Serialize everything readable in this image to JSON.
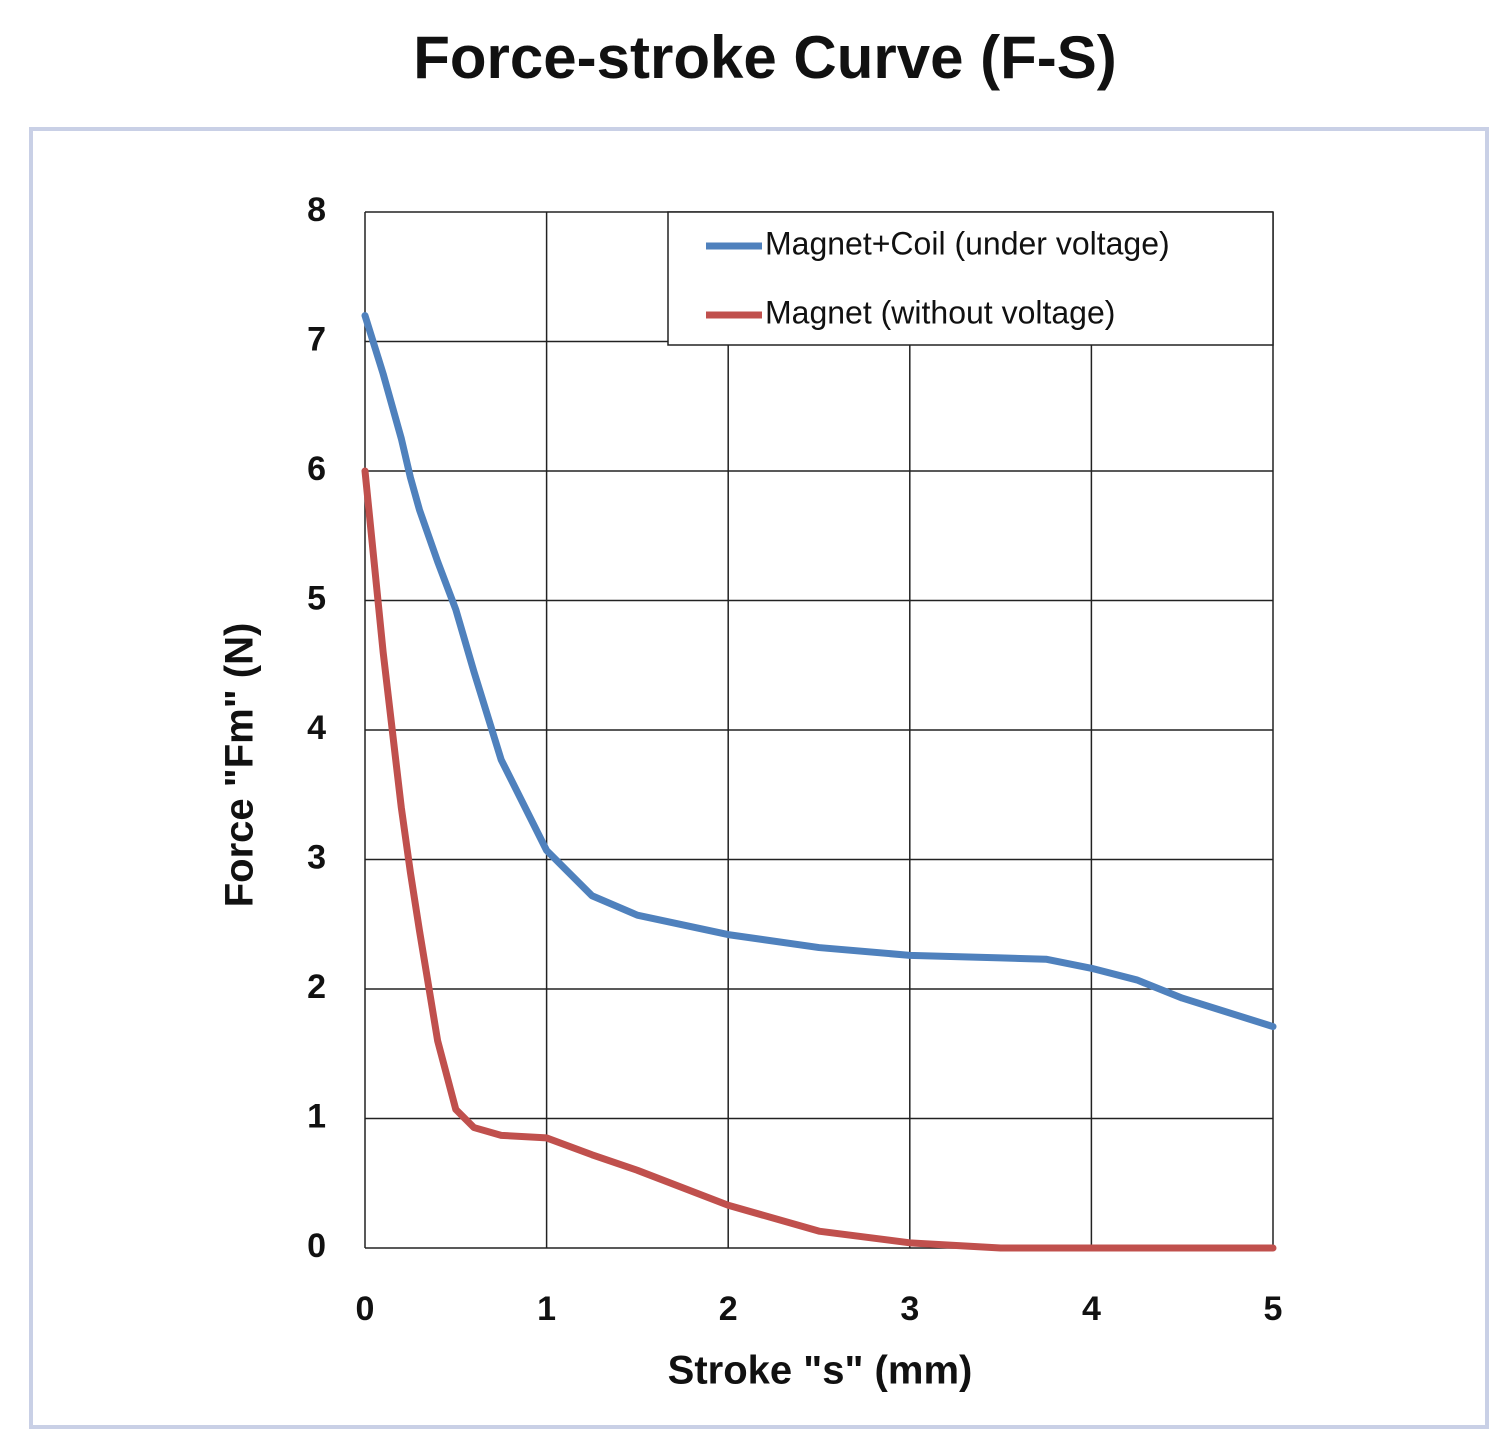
{
  "chart_data": {
    "type": "line",
    "title": "Force-stroke Curve (F-S)",
    "x_label": "Stroke \"s\" (mm)",
    "y_label": "Force \"Fm\" (N)",
    "x": [
      0,
      0.1,
      0.2,
      0.25,
      0.3,
      0.4,
      0.5,
      0.6,
      0.75,
      1,
      1.25,
      1.5,
      2,
      2.5,
      3,
      3.5,
      3.75,
      4,
      4.25,
      4.5,
      5
    ],
    "series": [
      {
        "name": "Magnet+Coil (under voltage)",
        "color": "#4f81bd",
        "values": [
          7.2,
          6.75,
          6.25,
          5.95,
          5.7,
          5.3,
          4.93,
          4.45,
          3.77,
          3.07,
          2.72,
          2.57,
          2.42,
          2.32,
          2.26,
          2.24,
          2.23,
          2.16,
          2.07,
          1.93,
          1.71
        ]
      },
      {
        "name": "Magnet (without voltage)",
        "color": "#c0504d",
        "values": [
          6.0,
          4.6,
          3.4,
          2.9,
          2.45,
          1.6,
          1.07,
          0.93,
          0.87,
          0.85,
          0.72,
          0.6,
          0.33,
          0.13,
          0.04,
          0,
          0,
          0,
          0,
          0,
          0
        ]
      }
    ],
    "xlim": [
      0,
      5
    ],
    "ylim": [
      0,
      8
    ],
    "xticks": [
      0,
      1,
      2,
      3,
      4,
      5
    ],
    "yticks": [
      0,
      1,
      2,
      3,
      4,
      5,
      6,
      7,
      8
    ],
    "grid": true,
    "legend": "upper right"
  }
}
